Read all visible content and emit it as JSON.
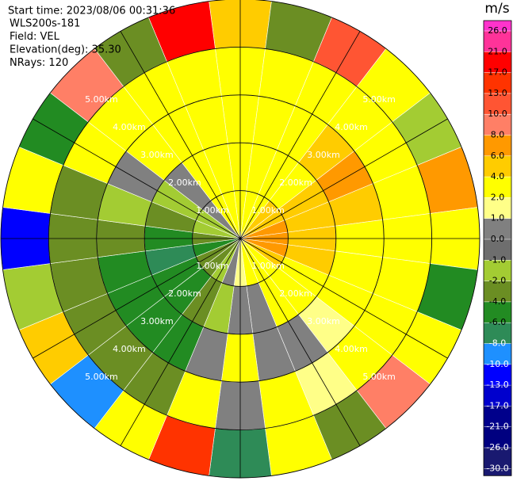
{
  "chart_data": {
    "type": "polar",
    "title": "Start time: 2023/08/06 00:31:36",
    "info": [
      "WLS200s-181",
      "Field: VEL",
      "Elevation(deg): 35.30",
      "NRays: 120"
    ],
    "azimuths": [
      0,
      15,
      30,
      45,
      60,
      75,
      90,
      105,
      120,
      135,
      150,
      165,
      180,
      195,
      210,
      225,
      240,
      255,
      270,
      285,
      300,
      315,
      330,
      345
    ],
    "ranges": [
      0.5,
      1.5,
      2.5,
      3.5,
      4.5
    ],
    "values": [
      [
        2.5,
        3,
        3,
        2.5,
        5
      ],
      [
        3,
        3,
        3.5,
        3,
        -3
      ],
      [
        3.5,
        3,
        3,
        2.5,
        12
      ],
      [
        4.5,
        3.5,
        5,
        3,
        2.5
      ],
      [
        5,
        4.5,
        6.5,
        3,
        -1.5
      ],
      [
        6.5,
        5,
        4.5,
        3,
        7
      ],
      [
        7,
        5,
        3,
        2.5,
        3
      ],
      [
        6.5,
        4.5,
        3,
        2.5,
        -5
      ],
      [
        5,
        3.5,
        2.5,
        3,
        2.5
      ],
      [
        3.5,
        3,
        1.5,
        2.5,
        9
      ],
      [
        3,
        2.5,
        0.5,
        1.5,
        -2.5
      ],
      [
        2.5,
        0.5,
        0.5,
        2.5,
        3
      ],
      [
        1.5,
        0.5,
        2.5,
        0.5,
        -7
      ],
      [
        0.5,
        -1.5,
        0.5,
        2.5,
        14
      ],
      [
        -1.5,
        -3,
        -5,
        -3,
        2.5
      ],
      [
        -3,
        -5,
        -5,
        -3,
        -9
      ],
      [
        -3,
        -5,
        -5,
        -3,
        5
      ],
      [
        -5,
        -7,
        -5,
        -3,
        -1.5
      ],
      [
        -3,
        -5,
        -3,
        -3,
        -11
      ],
      [
        -1.5,
        -3,
        -1.5,
        -3,
        3
      ],
      [
        -1.5,
        -1.5,
        0.5,
        2.5,
        -5
      ],
      [
        0.5,
        0.5,
        2.5,
        3,
        8
      ],
      [
        2.5,
        3,
        2.5,
        3,
        -3
      ],
      [
        2.5,
        3,
        3,
        2.5,
        18
      ]
    ],
    "rings": [
      {
        "value": 1,
        "label": "1.00km"
      },
      {
        "value": 2,
        "label": "2.00km"
      },
      {
        "value": 3,
        "label": "3.00km"
      },
      {
        "value": 4,
        "label": "4.00km"
      },
      {
        "value": 5,
        "label": "5.00km"
      }
    ],
    "colorbar": {
      "unit": "m/s",
      "ticks": [
        {
          "value": 26,
          "label": "26.0"
        },
        {
          "value": 21,
          "label": "21.0"
        },
        {
          "value": 17,
          "label": "17.0"
        },
        {
          "value": 13,
          "label": "13.0"
        },
        {
          "value": 10,
          "label": "10.0"
        },
        {
          "value": 8,
          "label": "8.0"
        },
        {
          "value": 6,
          "label": "6.0"
        },
        {
          "value": 4,
          "label": "4.0"
        },
        {
          "value": 2,
          "label": "2.0"
        },
        {
          "value": 1,
          "label": "1.0"
        },
        {
          "value": 0,
          "label": "0.0"
        },
        {
          "value": -1,
          "label": "-1.0"
        },
        {
          "value": -2,
          "label": "-2.0"
        },
        {
          "value": -4,
          "label": "-4.0"
        },
        {
          "value": -6,
          "label": "-6.0"
        },
        {
          "value": -8,
          "label": "-8.0"
        },
        {
          "value": -10,
          "label": "-10.0"
        },
        {
          "value": -13,
          "label": "-13.0"
        },
        {
          "value": -17,
          "label": "-17.0"
        },
        {
          "value": -21,
          "label": "-21.0"
        },
        {
          "value": -26,
          "label": "-26.0"
        },
        {
          "value": -30,
          "label": "-30.0"
        }
      ],
      "colors": [
        "#ff33cc",
        "#ff3399",
        "#ff0000",
        "#ff3300",
        "#ff5533",
        "#ff7f66",
        "#ff9900",
        "#ffcc00",
        "#ffff00",
        "#ffff88",
        "#808080",
        "#6e6e6e",
        "#a3cc33",
        "#6b8e23",
        "#228b22",
        "#2e8b57",
        "#1e90ff",
        "#0000ff",
        "#0000cd",
        "#00008b",
        "#000080",
        "#191970",
        "#191970"
      ]
    }
  }
}
